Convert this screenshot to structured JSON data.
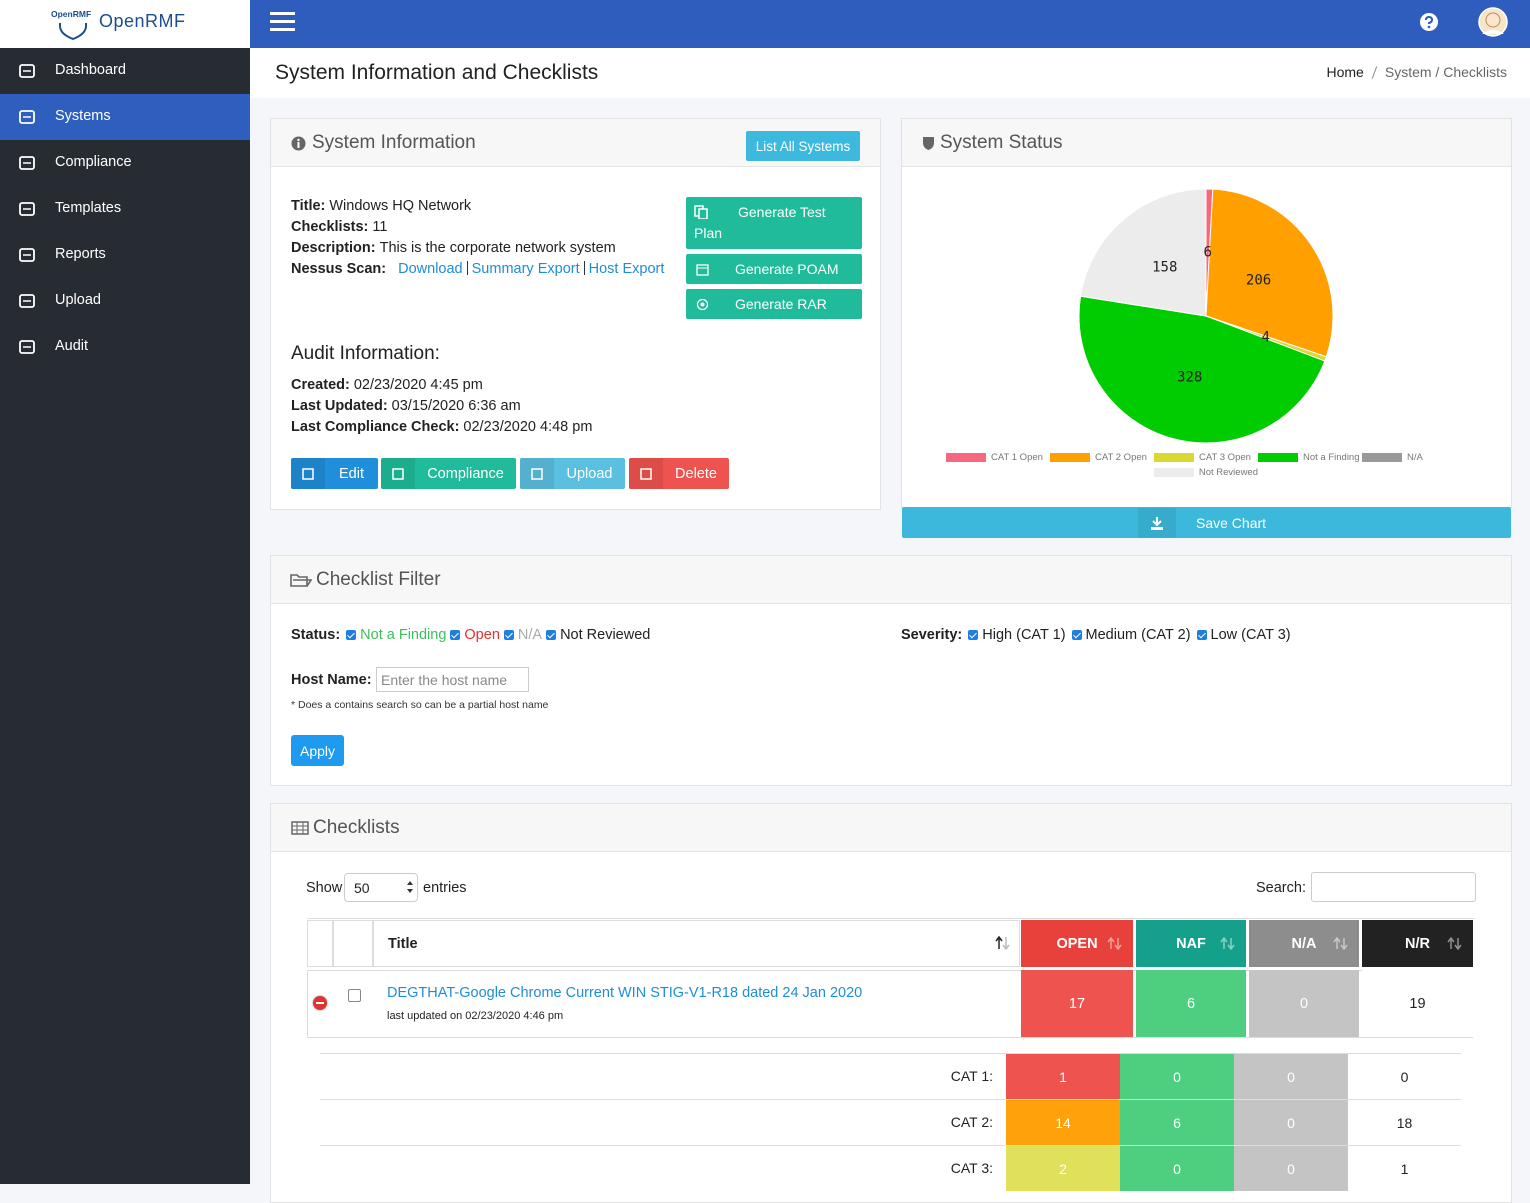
{
  "brand": {
    "logo_text": "OpenRMF",
    "name": "OpenRMF"
  },
  "nav": {
    "items": [
      "Dashboard",
      "Systems",
      "Compliance",
      "Templates",
      "Reports",
      "Upload",
      "Audit"
    ],
    "active": 1
  },
  "header": {
    "title": "System Information and Checklists",
    "breadcrumb": [
      "Home",
      "System / Checklists"
    ]
  },
  "system_info": {
    "heading": "System Information",
    "list_button": "List All Systems",
    "fields": [
      {
        "label": "Title:",
        "value": "Windows HQ Network"
      },
      {
        "label": "Checklists:",
        "value": "11"
      },
      {
        "label": "Description:",
        "value": "This is the corporate network system"
      }
    ],
    "nessus": {
      "label": "Nessus Scan:",
      "links": [
        "Download",
        "Summary Export",
        "Host Export"
      ]
    },
    "actions": [
      "Generate Test Plan",
      "Generate POAM",
      "Generate RAR"
    ],
    "audit_heading": "Audit Information:",
    "audit_fields": [
      {
        "label": "Created:",
        "value": "02/23/2020 4:45 pm"
      },
      {
        "label": "Last Updated:",
        "value": "03/15/2020 6:36 am"
      },
      {
        "label": "Last Compliance Check:",
        "value": "02/23/2020 4:48 pm"
      }
    ],
    "buttons": [
      "Edit",
      "Compliance",
      "Upload",
      "Delete"
    ]
  },
  "chart_data": {
    "type": "pie",
    "title": "System Status",
    "categories": [
      "CAT 1 Open",
      "CAT 2 Open",
      "CAT 3 Open",
      "Not a Finding",
      "N/A",
      "Not Reviewed"
    ],
    "values": [
      6,
      206,
      4,
      328,
      0,
      158
    ],
    "colors": [
      "#f7677e",
      "#ff9f00",
      "#d9d932",
      "#00cc00",
      "#999999",
      "#ececec"
    ],
    "legend": "bottom"
  },
  "status_card": {
    "save_button": "Save Chart"
  },
  "filter": {
    "heading": "Checklist Filter",
    "status_label": "Status:",
    "status_options": [
      "Not a Finding",
      "Open",
      "N/A",
      "Not Reviewed"
    ],
    "severity_label": "Severity:",
    "severity_options": [
      "High (CAT 1)",
      "Medium (CAT 2)",
      "Low (CAT 3)"
    ],
    "host_label": "Host Name:",
    "host_placeholder": "Enter the host name",
    "note": "* Does a contains search so can be a partial host name",
    "apply": "Apply"
  },
  "checklists": {
    "heading": "Checklists",
    "show": "Show",
    "page_length": 50,
    "entries": "entries",
    "search": "Search:",
    "columns": [
      "Title",
      "OPEN",
      "NAF",
      "N/A",
      "N/R"
    ],
    "rows": [
      {
        "title": "DEGTHAT-Google Chrome Current WIN STIG-V1-R18 dated 24 Jan 2020",
        "updated": "last updated on 02/23/2020 4:46 pm",
        "counts": [
          17,
          6,
          0,
          19
        ],
        "breakdown": [
          {
            "label": "CAT 1:",
            "counts": [
              1,
              0,
              0,
              0
            ]
          },
          {
            "label": "CAT 2:",
            "counts": [
              14,
              6,
              0,
              18
            ]
          },
          {
            "label": "CAT 3:",
            "counts": [
              2,
              0,
              0,
              1
            ]
          }
        ]
      }
    ]
  }
}
